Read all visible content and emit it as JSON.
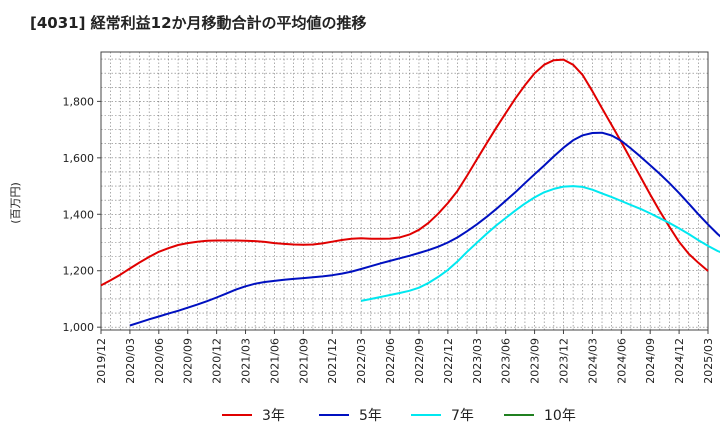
{
  "chart_data": {
    "type": "line",
    "title": "[4031]  経常利益12か月移動合計の平均値の推移",
    "ylabel": "(百万円)",
    "xlabel": "",
    "x_ticks": [
      "2019/12",
      "2020/03",
      "2020/06",
      "2020/09",
      "2020/12",
      "2021/03",
      "2021/06",
      "2021/09",
      "2021/12",
      "2022/03",
      "2022/06",
      "2022/09",
      "2022/12",
      "2023/03",
      "2023/06",
      "2023/09",
      "2023/12",
      "2024/03",
      "2024/06",
      "2024/09",
      "2024/12",
      "2025/03"
    ],
    "y_ticks": [
      "1,000",
      "1,200",
      "1,400",
      "1,600",
      "1,800"
    ],
    "y_tick_values": [
      1000,
      1200,
      1400,
      1600,
      1800
    ],
    "ylim": [
      990,
      1975
    ],
    "grid": true,
    "legend_position": "bottom",
    "series": [
      {
        "name": "3年",
        "color": "#e00000",
        "start_month": "2019/12",
        "values": [
          1148,
          1166,
          1186,
          1208,
          1229,
          1249,
          1267,
          1280,
          1291,
          1298,
          1303,
          1306,
          1307,
          1307,
          1307,
          1306,
          1305,
          1302,
          1298,
          1295,
          1293,
          1292,
          1293,
          1297,
          1303,
          1309,
          1313,
          1315,
          1313,
          1313,
          1314,
          1318,
          1328,
          1345,
          1370,
          1402,
          1440,
          1483,
          1537,
          1594,
          1650,
          1705,
          1758,
          1810,
          1857,
          1900,
          1930,
          1946,
          1948,
          1930,
          1893,
          1836,
          1776,
          1716,
          1656,
          1594,
          1532,
          1470,
          1411,
          1355,
          1302,
          1260,
          1228,
          1199
        ]
      },
      {
        "name": "5年",
        "color": "#0010c0",
        "start_month": "2020/03",
        "values": [
          1006,
          1017,
          1028,
          1038,
          1048,
          1058,
          1069,
          1080,
          1092,
          1105,
          1119,
          1133,
          1145,
          1154,
          1160,
          1164,
          1168,
          1171,
          1174,
          1177,
          1180,
          1184,
          1190,
          1197,
          1206,
          1216,
          1226,
          1235,
          1244,
          1253,
          1263,
          1273,
          1285,
          1300,
          1318,
          1340,
          1364,
          1390,
          1418,
          1448,
          1478,
          1510,
          1542,
          1573,
          1605,
          1636,
          1662,
          1680,
          1688,
          1689,
          1679,
          1660,
          1633,
          1604,
          1574,
          1543,
          1510,
          1475,
          1438,
          1400,
          1364,
          1330,
          1300,
          1275,
          1256,
          1242
        ]
      },
      {
        "name": "7年",
        "color": "#00e8f0",
        "start_month": "2022/03",
        "values": [
          1093,
          1100,
          1107,
          1114,
          1121,
          1129,
          1140,
          1157,
          1178,
          1203,
          1233,
          1267,
          1299,
          1330,
          1360,
          1387,
          1413,
          1438,
          1460,
          1478,
          1490,
          1498,
          1500,
          1497,
          1487,
          1474,
          1461,
          1447,
          1433,
          1419,
          1403,
          1386,
          1369,
          1350,
          1330,
          1308,
          1288,
          1270,
          1256
        ]
      },
      {
        "name": "10年",
        "color": "#208020",
        "start_month": "2024/12",
        "values": []
      }
    ]
  }
}
